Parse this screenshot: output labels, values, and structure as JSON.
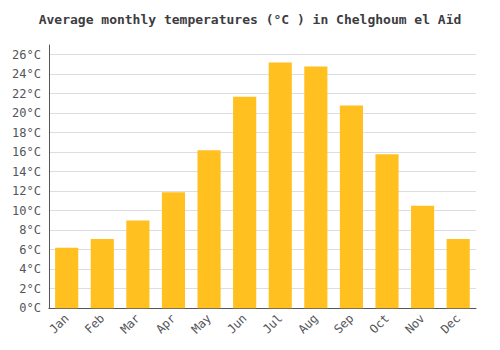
{
  "chart_data": {
    "type": "bar",
    "title": "Average monthly temperatures (°C ) in Chelghoum el Aïd",
    "categories": [
      "Jan",
      "Feb",
      "Mar",
      "Apr",
      "May",
      "Jun",
      "Jul",
      "Aug",
      "Sep",
      "Oct",
      "Nov",
      "Dec"
    ],
    "values": [
      6.2,
      7.1,
      9.0,
      11.9,
      16.2,
      21.7,
      25.2,
      24.8,
      20.8,
      15.8,
      10.5,
      7.1
    ],
    "color": "#FFC020",
    "ylim": [
      0,
      27
    ],
    "yticks": [
      {
        "value": 0,
        "label": "0°C"
      },
      {
        "value": 2,
        "label": "2°C"
      },
      {
        "value": 4,
        "label": "4°C"
      },
      {
        "value": 6,
        "label": "6°C"
      },
      {
        "value": 8,
        "label": "8°C"
      },
      {
        "value": 10,
        "label": "10°C"
      },
      {
        "value": 12,
        "label": "12°C"
      },
      {
        "value": 14,
        "label": "14°C"
      },
      {
        "value": 16,
        "label": "16°C"
      },
      {
        "value": 18,
        "label": "18°C"
      },
      {
        "value": 20,
        "label": "20°C"
      },
      {
        "value": 22,
        "label": "22°C"
      },
      {
        "value": 24,
        "label": "24°C"
      },
      {
        "value": 26,
        "label": "26°C"
      }
    ],
    "grid": true
  }
}
